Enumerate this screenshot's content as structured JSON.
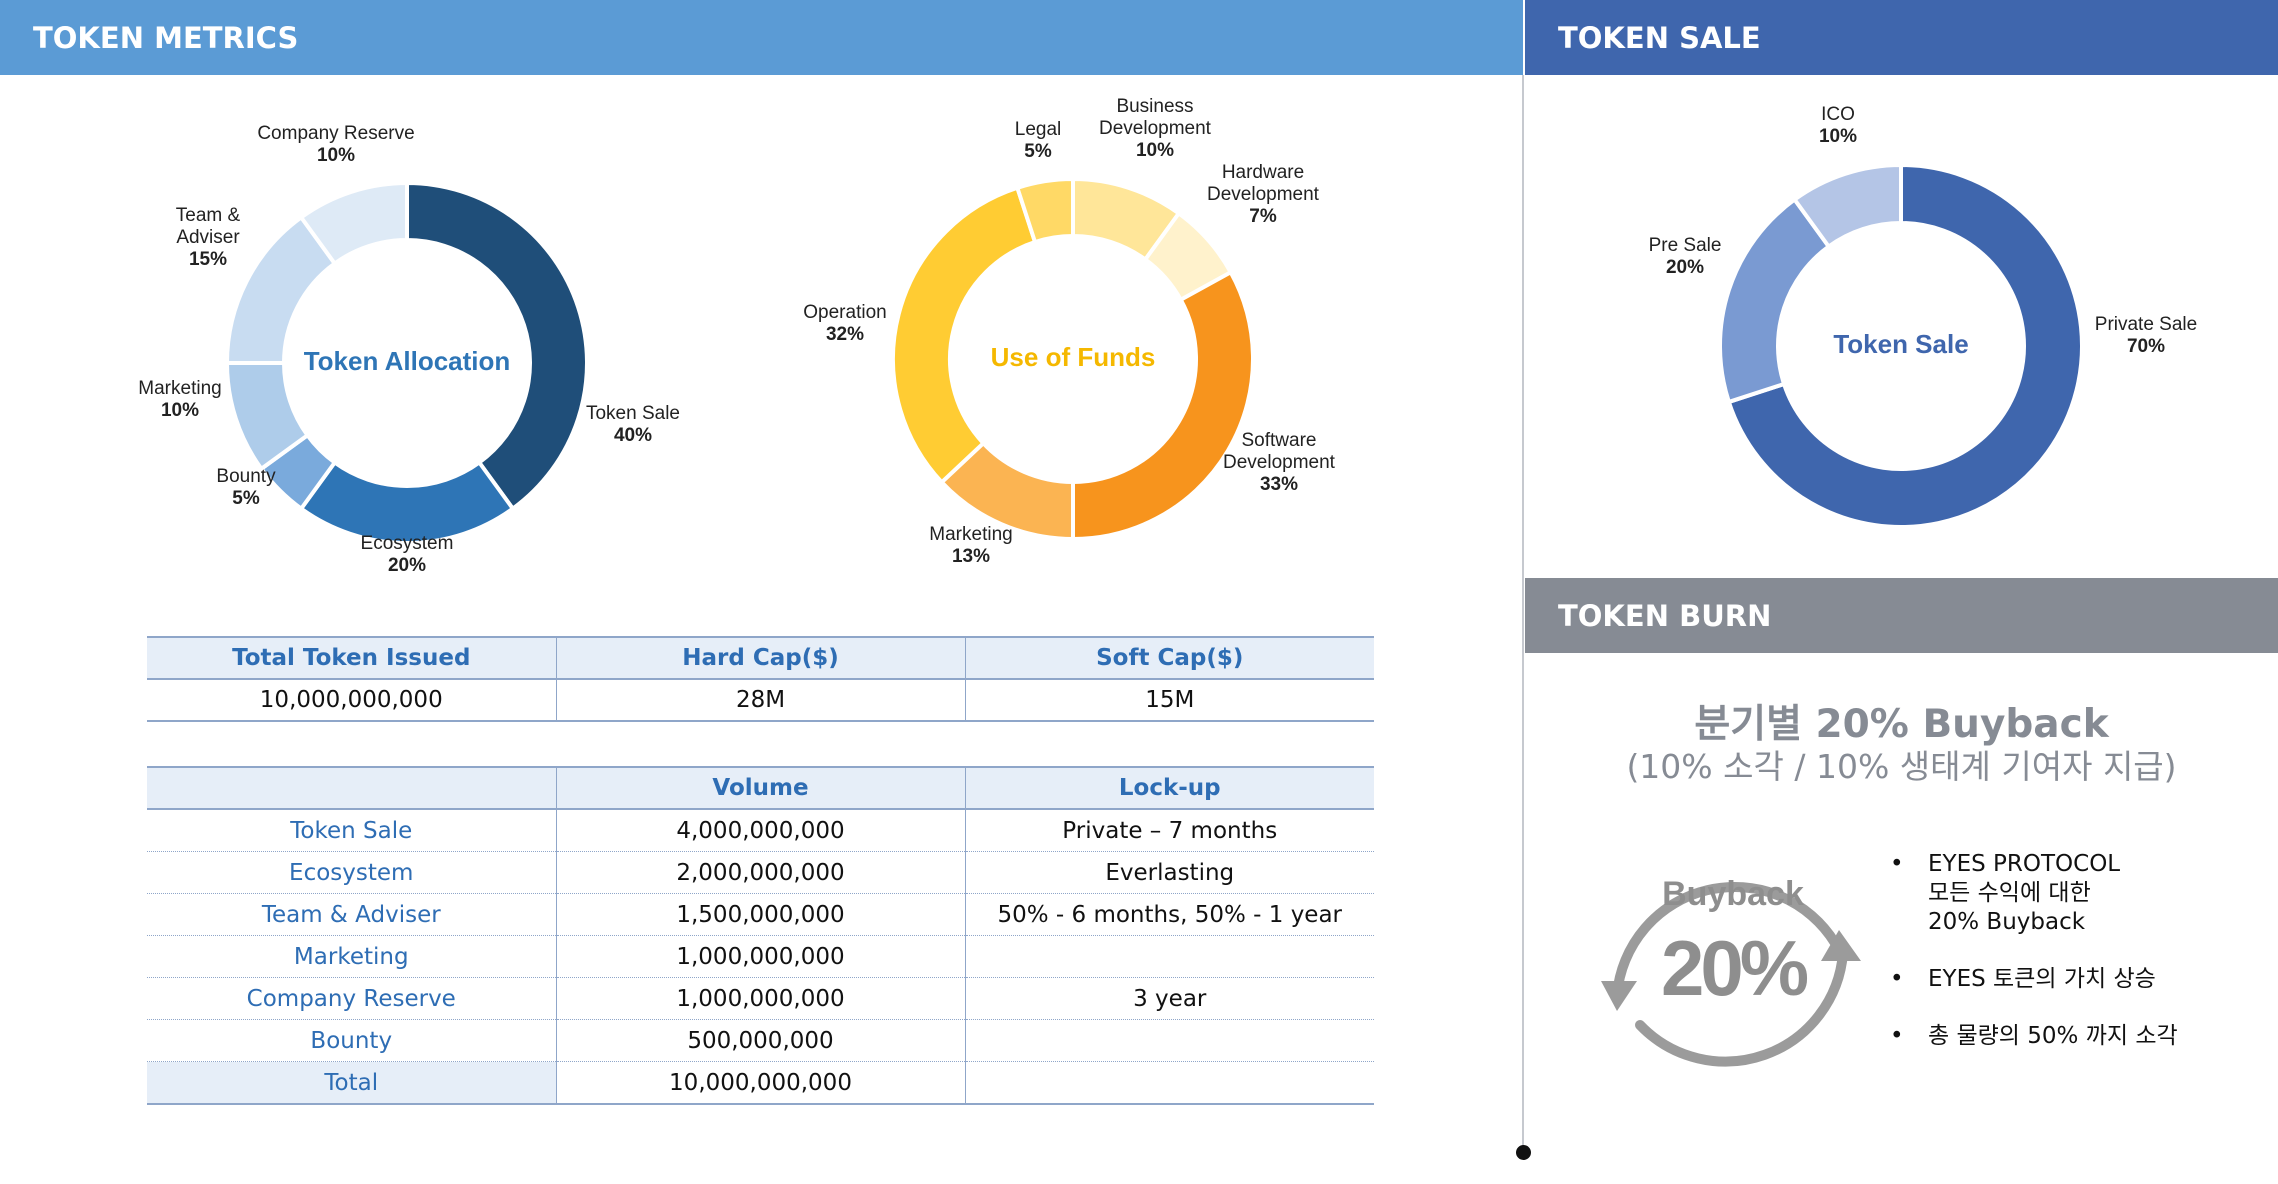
{
  "headers": {
    "metrics": "TOKEN METRICS",
    "sale": "TOKEN SALE",
    "burn": "TOKEN BURN"
  },
  "colors": {
    "metrics_band": "#5b9bd5",
    "sale_band": "#3f66ad",
    "burn_band": "#868b94"
  },
  "chart_data": [
    {
      "type": "pie",
      "title": "Token Allocation",
      "slices": [
        {
          "label": "Token Sale",
          "value": 40,
          "pct": "40%",
          "color": "#1f4e79"
        },
        {
          "label": "Ecosystem",
          "value": 20,
          "pct": "20%",
          "color": "#2e75b6"
        },
        {
          "label": "Bounty",
          "value": 5,
          "pct": "5%",
          "color": "#7aaadc"
        },
        {
          "label": "Marketing",
          "value": 10,
          "pct": "10%",
          "color": "#aeccea"
        },
        {
          "label": "Team & Adviser",
          "value": 15,
          "pct": "15%",
          "color": "#c8dcf1"
        },
        {
          "label": "Company Reserve",
          "value": 10,
          "pct": "10%",
          "color": "#deeaf6"
        }
      ]
    },
    {
      "type": "pie",
      "title": "Use of Funds",
      "slices": [
        {
          "label": "Business Development",
          "value": 10,
          "pct": "10%",
          "color": "#ffe699"
        },
        {
          "label": "Hardware Development",
          "value": 7,
          "pct": "7%",
          "color": "#fff2cc"
        },
        {
          "label": "Software Development",
          "value": 33,
          "pct": "33%",
          "color": "#f7941d"
        },
        {
          "label": "Marketing",
          "value": 13,
          "pct": "13%",
          "color": "#fbb452"
        },
        {
          "label": "Operation",
          "value": 32,
          "pct": "32%",
          "color": "#ffcc33"
        },
        {
          "label": "Legal",
          "value": 5,
          "pct": "5%",
          "color": "#ffd966"
        }
      ]
    },
    {
      "type": "pie",
      "title": "Token Sale",
      "slices": [
        {
          "label": "Private Sale",
          "value": 70,
          "pct": "70%",
          "color": "#3f66ad"
        },
        {
          "label": "Pre Sale",
          "value": 20,
          "pct": "20%",
          "color": "#7a9ad2"
        },
        {
          "label": "ICO",
          "value": 10,
          "pct": "10%",
          "color": "#b4c5e6"
        }
      ]
    }
  ],
  "table1": {
    "headers": [
      "Total Token Issued",
      "Hard Cap($)",
      "Soft Cap($)"
    ],
    "values": [
      "10,000,000,000",
      "28M",
      "15M"
    ]
  },
  "table2": {
    "headers": [
      "",
      "Volume",
      "Lock-up"
    ],
    "rows": [
      [
        "Token Sale",
        "4,000,000,000",
        "Private – 7 months"
      ],
      [
        "Ecosystem",
        "2,000,000,000",
        "Everlasting"
      ],
      [
        "Team & Adviser",
        "1,500,000,000",
        "50% - 6 months, 50% - 1 year"
      ],
      [
        "Marketing",
        "1,000,000,000",
        ""
      ],
      [
        "Company Reserve",
        "1,000,000,000",
        "3 year"
      ],
      [
        "Bounty",
        "500,000,000",
        ""
      ],
      [
        "Total",
        "10,000,000,000",
        ""
      ]
    ]
  },
  "burn": {
    "title": "분기별 20% Buyback",
    "subtitle": "(10% 소각 /  10% 생태계 기여자 지급)",
    "icon_label": "Buyback",
    "icon_value": "20%",
    "bullets": [
      "EYES PROTOCOL\n모든 수익에 대한\n 20% Buyback",
      "EYES 토큰의 가치 상승",
      "총 물량의 50% 까지 소각"
    ]
  }
}
